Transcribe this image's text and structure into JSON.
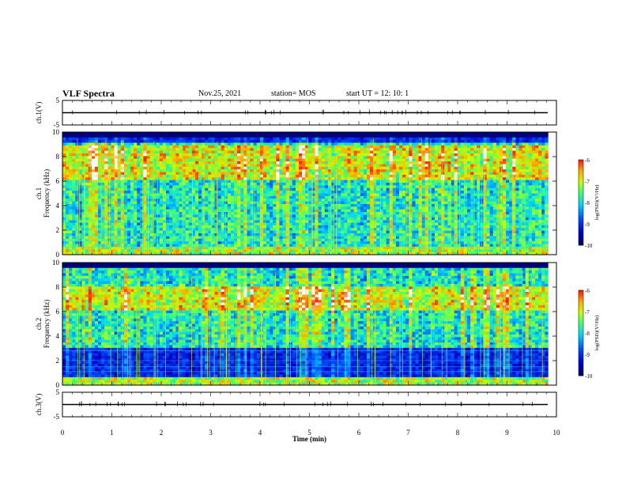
{
  "header": {
    "title": "VLF Spectra",
    "date": "Nov.25, 2021",
    "station": "station= MOS",
    "start": "start  UT =   12: 10: 1"
  },
  "chart_data": [
    {
      "type": "line",
      "panel": "ch1-waveform",
      "ylabel": "ch.1(V)",
      "ylim": [
        -5,
        5
      ],
      "yticks": [
        "5",
        "-5"
      ],
      "baseline": 0
    },
    {
      "type": "heatmap",
      "panel": "ch1-spectrogram",
      "ylabel": "ch.1\nFrequency (kHz)",
      "ylim": [
        0,
        10
      ],
      "yticks": [
        "0",
        "2",
        "4",
        "6",
        "8",
        "10"
      ],
      "colorbar": {
        "label": "log(PSD)(V²/Hz)",
        "ticks": [
          "-6",
          "-7",
          "-8",
          "-9",
          "-10"
        ],
        "range": [
          -10,
          -6
        ]
      },
      "dominant_band_khz": [
        0.5,
        9.2
      ],
      "strong_band_khz": [
        6.0,
        9.0
      ],
      "low_power_khz": [
        0,
        3.5
      ]
    },
    {
      "type": "heatmap",
      "panel": "ch2-spectrogram",
      "ylabel": "ch.2\nFrequency (kHz)",
      "ylim": [
        0,
        10
      ],
      "yticks": [
        "0",
        "2",
        "4",
        "6",
        "8",
        "10"
      ],
      "colorbar": {
        "label": "log(PSD)(V²/Hz)",
        "ticks": [
          "-6",
          "-7",
          "-8",
          "-9",
          "-10"
        ],
        "range": [
          -10,
          -6
        ]
      },
      "dominant_band_khz": [
        3.0,
        9.5
      ],
      "strong_band_khz": [
        6.0,
        8.0
      ],
      "low_power_khz": [
        0,
        3.0
      ]
    },
    {
      "type": "line",
      "panel": "ch3-waveform",
      "ylabel": "ch.3(V)",
      "ylim": [
        -5,
        5
      ],
      "yticks": [
        "5",
        "-5"
      ],
      "baseline": 0
    }
  ],
  "xaxis": {
    "label": "Time  (min)",
    "ticks": [
      "0",
      "1",
      "2",
      "3",
      "4",
      "5",
      "6",
      "7",
      "8",
      "9",
      "10"
    ],
    "range": [
      0,
      10
    ]
  }
}
